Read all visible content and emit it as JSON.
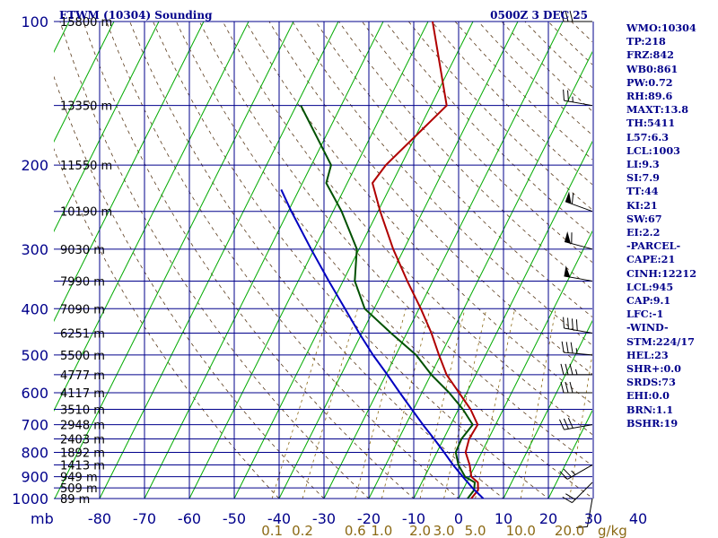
{
  "header": {
    "station": "ETWM (10304) Sounding",
    "time": "0500Z  3 DEC 25"
  },
  "stats": [
    "WMO:10304",
    "TP:218",
    "FRZ:842",
    "WB0:861",
    "PW:0.72",
    "RH:89.6",
    "MAXT:13.8",
    "TH:5411",
    "L57:6.3",
    "LCL:1003",
    "LI:9.3",
    "SI:7.9",
    "TT:44",
    "KI:21",
    "SW:67",
    "EI:2.2",
    "-PARCEL-",
    "CAPE:21",
    "CINH:12212",
    "LCL:945",
    "CAP:9.1",
    "LFC:-1",
    "-WIND-",
    "STM:224/17",
    "HEL:23",
    "SHR+:0.0",
    "SRDS:73",
    "EHI:0.0",
    "BRN:1.1",
    "BSHR:19"
  ],
  "colors": {
    "grid": "#00008b",
    "isotherm": "#00aa00",
    "temperature": "#b00000",
    "dewpoint": "#005000",
    "parcel": "#0000c0",
    "dry_adiabat": "#5a3a1a",
    "moist_adiabat": "#4499cc",
    "mixing_ratio": "#8b6914",
    "wind": "#000000"
  },
  "chart_data": {
    "type": "skew-t log-p",
    "title": "ETWM (10304) Sounding",
    "valid_time": "0500Z  3 DEC 25",
    "pressure_axis": {
      "unit": "mb",
      "unit_label": "mb",
      "range": [
        1000,
        100
      ],
      "ticks": [
        100,
        200,
        300,
        400,
        500,
        600,
        700,
        800,
        900,
        1000
      ],
      "tick_labels": [
        "100",
        "200",
        "300",
        "400",
        "500",
        "600",
        "700",
        "800",
        "900",
        "1000"
      ]
    },
    "temperature_axis": {
      "unit": "C",
      "ticks": [
        -80,
        -70,
        -60,
        -50,
        -40,
        -30,
        -20,
        -10,
        0,
        10,
        20,
        30,
        40
      ],
      "tick_labels": [
        "-80",
        "-70",
        "-60",
        "-50",
        "-40",
        "-30",
        "-20",
        "-10",
        "0",
        "10",
        "20",
        "30",
        "40"
      ]
    },
    "mixing_ratio_lines": {
      "unit": "g/kg",
      "unit_label": "g/kg",
      "values": [
        0.1,
        0.2,
        0.6,
        1.0,
        2.0,
        3.0,
        5.0,
        10.0,
        20.0
      ],
      "labels": [
        "0.1",
        "0.2",
        "0.6",
        "1.0",
        "2.0",
        "3.0",
        "5.0",
        "10.0",
        "20.0"
      ]
    },
    "height_labels": [
      {
        "p": 100,
        "label": "15800 m"
      },
      {
        "p": 150,
        "label": "13350 m"
      },
      {
        "p": 200,
        "label": "11550 m"
      },
      {
        "p": 250,
        "label": "10190 m"
      },
      {
        "p": 300,
        "label": "9030 m"
      },
      {
        "p": 350,
        "label": "7990 m"
      },
      {
        "p": 400,
        "label": "7090 m"
      },
      {
        "p": 450,
        "label": "6251 m"
      },
      {
        "p": 500,
        "label": "5500 m"
      },
      {
        "p": 550,
        "label": "4777 m"
      },
      {
        "p": 600,
        "label": "4117 m"
      },
      {
        "p": 650,
        "label": "3510 m"
      },
      {
        "p": 700,
        "label": "2948 m"
      },
      {
        "p": 750,
        "label": "2403 m"
      },
      {
        "p": 800,
        "label": "1892 m"
      },
      {
        "p": 850,
        "label": "1413 m"
      },
      {
        "p": 900,
        "label": "949 m"
      },
      {
        "p": 950,
        "label": "509 m"
      },
      {
        "p": 1000,
        "label": "89 m"
      }
    ],
    "series": [
      {
        "name": "Temperature",
        "points": [
          {
            "p": 1000,
            "t": 2.8
          },
          {
            "p": 960,
            "t": 3.4
          },
          {
            "p": 925,
            "t": 2.5
          },
          {
            "p": 900,
            "t": 0.4
          },
          {
            "p": 850,
            "t": -1.3
          },
          {
            "p": 800,
            "t": -3.6
          },
          {
            "p": 750,
            "t": -4.3
          },
          {
            "p": 700,
            "t": -4.0
          },
          {
            "p": 650,
            "t": -7.3
          },
          {
            "p": 600,
            "t": -11.7
          },
          {
            "p": 550,
            "t": -16.5
          },
          {
            "p": 500,
            "t": -20.4
          },
          {
            "p": 450,
            "t": -24.5
          },
          {
            "p": 400,
            "t": -29.6
          },
          {
            "p": 350,
            "t": -35.7
          },
          {
            "p": 300,
            "t": -42.4
          },
          {
            "p": 250,
            "t": -49.5
          },
          {
            "p": 218,
            "t": -54.4
          },
          {
            "p": 200,
            "t": -53.4
          },
          {
            "p": 150,
            "t": -46.5
          },
          {
            "p": 100,
            "t": -59.0
          }
        ]
      },
      {
        "name": "Dewpoint",
        "points": [
          {
            "p": 1000,
            "t": 2.0
          },
          {
            "p": 960,
            "t": 2.5
          },
          {
            "p": 925,
            "t": 1.8
          },
          {
            "p": 900,
            "t": -1.0
          },
          {
            "p": 850,
            "t": -3.8
          },
          {
            "p": 800,
            "t": -5.8
          },
          {
            "p": 750,
            "t": -6.0
          },
          {
            "p": 700,
            "t": -5.1
          },
          {
            "p": 650,
            "t": -9.0
          },
          {
            "p": 600,
            "t": -13.9
          },
          {
            "p": 550,
            "t": -19.9
          },
          {
            "p": 500,
            "t": -25.5
          },
          {
            "p": 450,
            "t": -33.5
          },
          {
            "p": 400,
            "t": -42.1
          },
          {
            "p": 350,
            "t": -47.4
          },
          {
            "p": 300,
            "t": -50.5
          },
          {
            "p": 250,
            "t": -58.1
          },
          {
            "p": 218,
            "t": -64.7
          },
          {
            "p": 200,
            "t": -65.6
          },
          {
            "p": 150,
            "t": -79.0
          }
        ]
      },
      {
        "name": "Parcel",
        "points": [
          {
            "p": 1000,
            "t": 5.5
          },
          {
            "p": 950,
            "t": 1.9
          },
          {
            "p": 900,
            "t": -1.5
          },
          {
            "p": 850,
            "t": -5.0
          },
          {
            "p": 800,
            "t": -8.4
          },
          {
            "p": 750,
            "t": -12.1
          },
          {
            "p": 700,
            "t": -16.2
          },
          {
            "p": 650,
            "t": -20.4
          },
          {
            "p": 600,
            "t": -24.9
          },
          {
            "p": 550,
            "t": -29.7
          },
          {
            "p": 500,
            "t": -35.1
          },
          {
            "p": 450,
            "t": -40.6
          },
          {
            "p": 400,
            "t": -46.5
          },
          {
            "p": 350,
            "t": -53.2
          },
          {
            "p": 300,
            "t": -60.7
          },
          {
            "p": 250,
            "t": -69.3
          },
          {
            "p": 225,
            "t": -74.0
          }
        ]
      }
    ],
    "winds": [
      {
        "p": 1000,
        "dir": 190,
        "kt": 10
      },
      {
        "p": 925,
        "dir": 225,
        "kt": 20
      },
      {
        "p": 850,
        "dir": 240,
        "kt": 25
      },
      {
        "p": 700,
        "dir": 260,
        "kt": 30
      },
      {
        "p": 600,
        "dir": 270,
        "kt": 30
      },
      {
        "p": 550,
        "dir": 270,
        "kt": 35
      },
      {
        "p": 500,
        "dir": 275,
        "kt": 35
      },
      {
        "p": 450,
        "dir": 280,
        "kt": 40
      },
      {
        "p": 350,
        "dir": 280,
        "kt": 50
      },
      {
        "p": 300,
        "dir": 285,
        "kt": 60
      },
      {
        "p": 250,
        "dir": 290,
        "kt": 60
      },
      {
        "p": 150,
        "dir": 280,
        "kt": 25
      },
      {
        "p": 100,
        "dir": 270,
        "kt": 30
      }
    ]
  }
}
